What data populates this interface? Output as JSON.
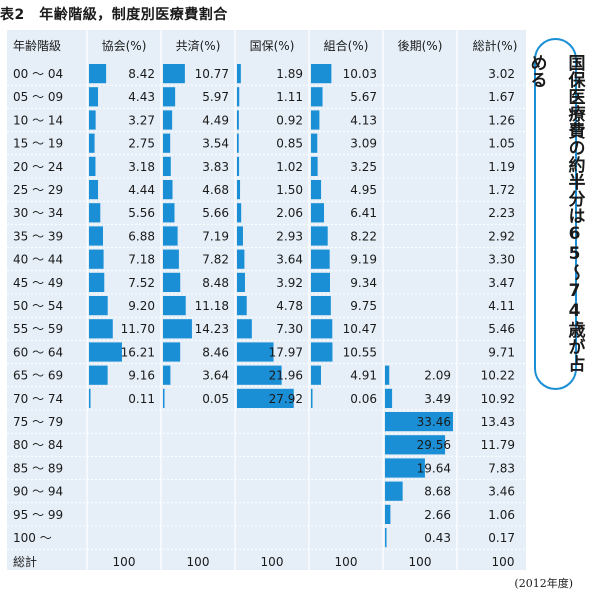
{
  "title": "表2　年齢階級，制度別医療費割合",
  "callout": "国保医療費の約半分は65～74歳が占める",
  "source": "(2012年度)",
  "chart_data": {
    "type": "table",
    "row_header": "年齢階級",
    "columns": [
      "協会(%)",
      "共済(%)",
      "国保(%)",
      "組合(%)",
      "後期(%)",
      "総計(%)"
    ],
    "rows": [
      {
        "age": "00 ～ 04",
        "values": [
          8.42,
          10.77,
          1.89,
          10.03,
          null,
          3.02
        ]
      },
      {
        "age": "05 ～ 09",
        "values": [
          4.43,
          5.97,
          1.11,
          5.67,
          null,
          1.67
        ]
      },
      {
        "age": "10 ～ 14",
        "values": [
          3.27,
          4.49,
          0.92,
          4.13,
          null,
          1.26
        ]
      },
      {
        "age": "15 ～ 19",
        "values": [
          2.75,
          3.54,
          0.85,
          3.09,
          null,
          1.05
        ]
      },
      {
        "age": "20 ～ 24",
        "values": [
          3.18,
          3.83,
          1.02,
          3.25,
          null,
          1.19
        ]
      },
      {
        "age": "25 ～ 29",
        "values": [
          4.44,
          4.68,
          1.5,
          4.95,
          null,
          1.72
        ]
      },
      {
        "age": "30 ～ 34",
        "values": [
          5.56,
          5.66,
          2.06,
          6.41,
          null,
          2.23
        ]
      },
      {
        "age": "35 ～ 39",
        "values": [
          6.88,
          7.19,
          2.93,
          8.22,
          null,
          2.92
        ]
      },
      {
        "age": "40 ～ 44",
        "values": [
          7.18,
          7.82,
          3.64,
          9.19,
          null,
          3.3
        ]
      },
      {
        "age": "45 ～ 49",
        "values": [
          7.52,
          8.48,
          3.92,
          9.34,
          null,
          3.47
        ]
      },
      {
        "age": "50 ～ 54",
        "values": [
          9.2,
          11.18,
          4.78,
          9.75,
          null,
          4.11
        ]
      },
      {
        "age": "55 ～ 59",
        "values": [
          11.7,
          14.23,
          7.3,
          10.47,
          null,
          5.46
        ]
      },
      {
        "age": "60 ～ 64",
        "values": [
          16.21,
          8.46,
          17.97,
          10.55,
          null,
          9.71
        ]
      },
      {
        "age": "65 ～ 69",
        "values": [
          9.16,
          3.64,
          21.96,
          4.91,
          2.09,
          10.22
        ]
      },
      {
        "age": "70 ～ 74",
        "values": [
          0.11,
          0.05,
          27.92,
          0.06,
          3.49,
          10.92
        ]
      },
      {
        "age": "75 ～ 79",
        "values": [
          null,
          null,
          null,
          null,
          33.46,
          13.43
        ]
      },
      {
        "age": "80 ～ 84",
        "values": [
          null,
          null,
          null,
          null,
          29.56,
          11.79
        ]
      },
      {
        "age": "85 ～ 89",
        "values": [
          null,
          null,
          null,
          null,
          19.64,
          7.83
        ]
      },
      {
        "age": "90 ～ 94",
        "values": [
          null,
          null,
          null,
          null,
          8.68,
          3.46
        ]
      },
      {
        "age": "95 ～ 99",
        "values": [
          null,
          null,
          null,
          null,
          2.66,
          1.06
        ]
      },
      {
        "age": "100 ～",
        "values": [
          null,
          null,
          null,
          null,
          0.43,
          0.17
        ]
      }
    ],
    "total_label": "総計",
    "totals": [
      "100",
      "100",
      "100",
      "100",
      "100",
      "100"
    ],
    "bar_max": 33.46,
    "bar_color": "#1a8fd6",
    "background_color": "#e6eff8",
    "grid": true
  }
}
